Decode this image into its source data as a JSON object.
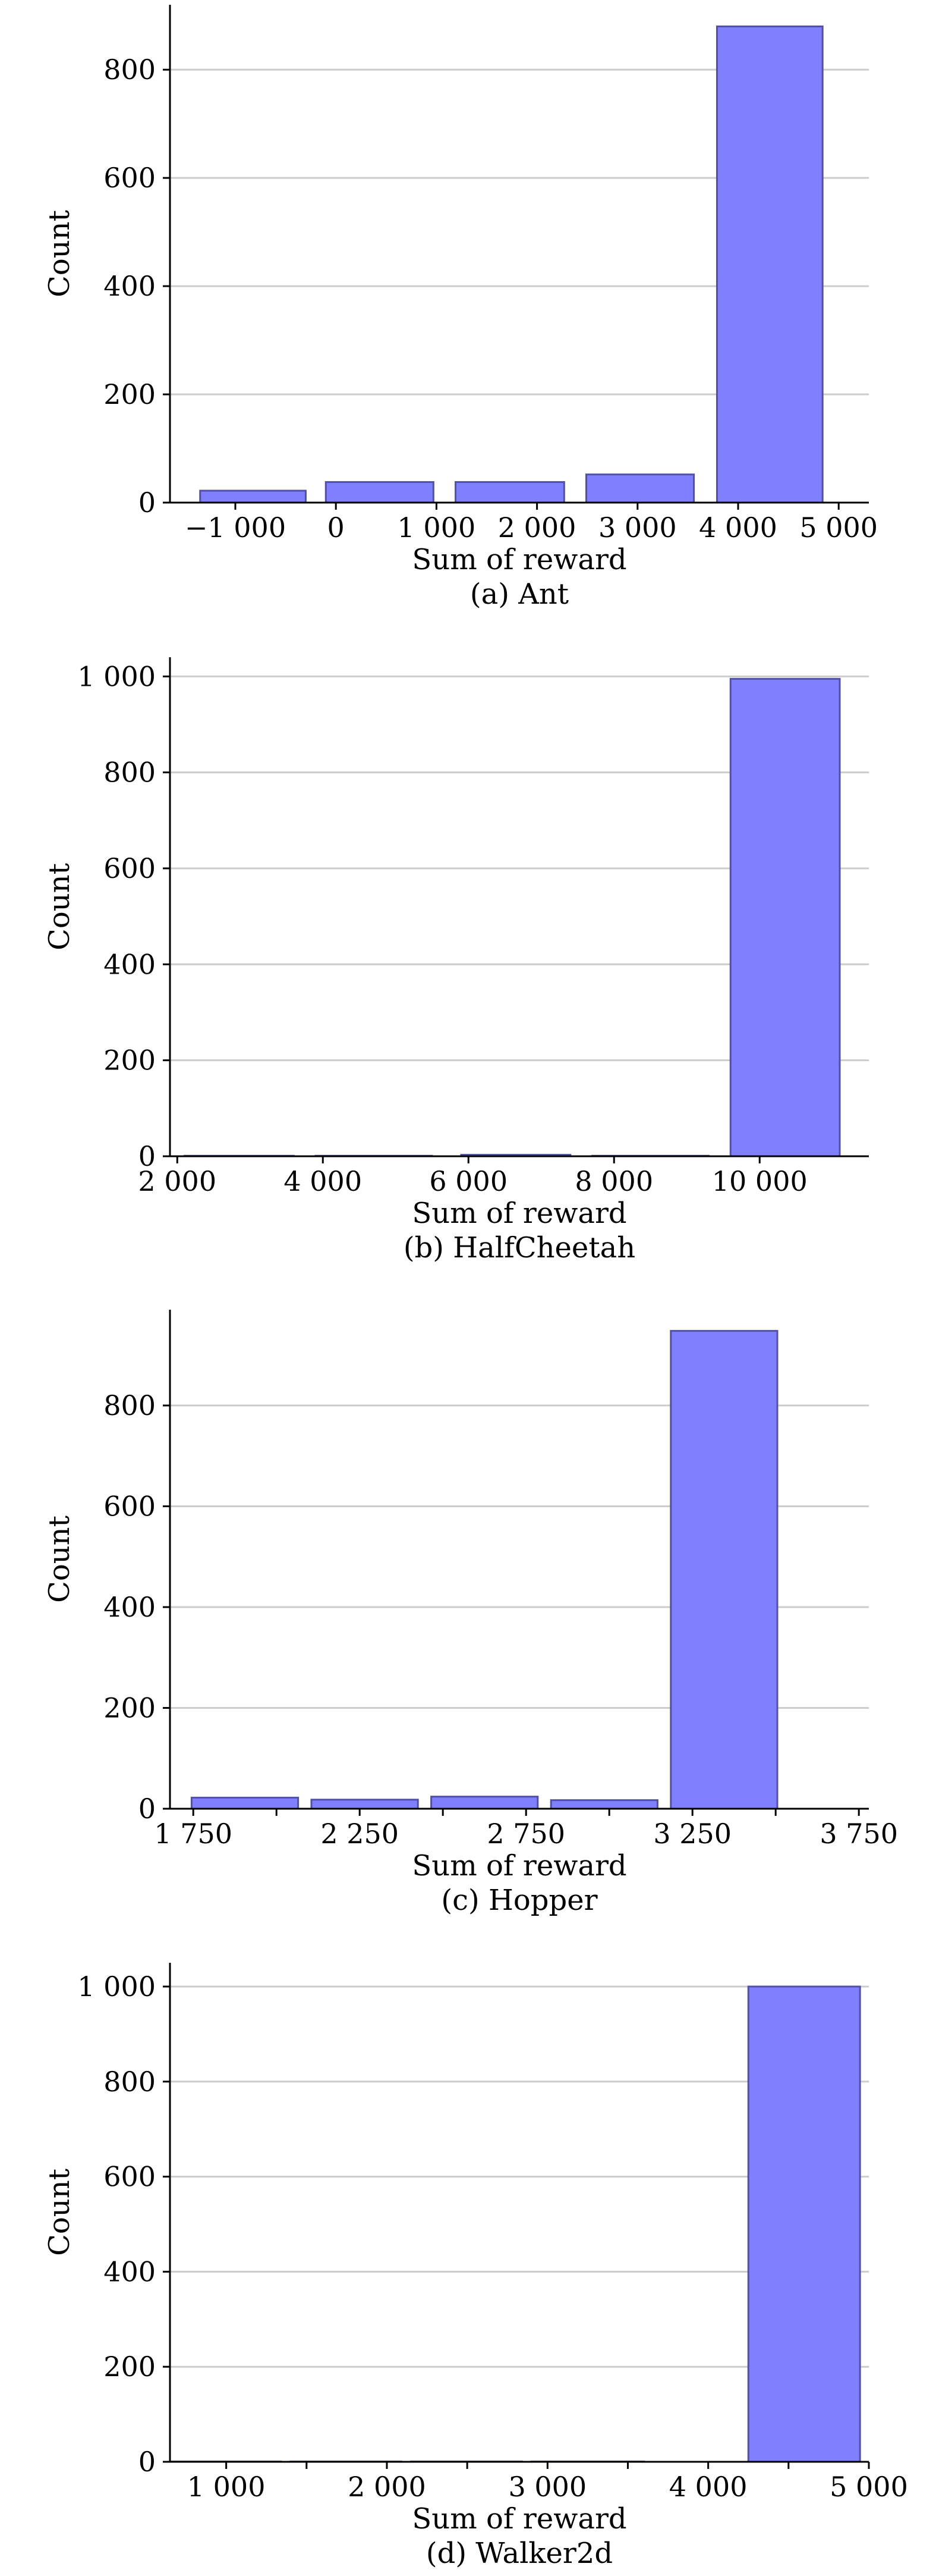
{
  "colors": {
    "bar_fill": "#8080ff",
    "bar_stroke": "#5050a8",
    "grid": "#cccccc",
    "axis": "#000000"
  },
  "chart_data": [
    {
      "type": "bar",
      "caption": "(a) Ant",
      "xlabel": "Sum of reward",
      "ylabel": "Count",
      "xlim": [
        -1650,
        5300
      ],
      "ylim": [
        0,
        920
      ],
      "xticks": [
        -1000,
        0,
        1000,
        2000,
        3000,
        4000,
        5000
      ],
      "xtick_labels": [
        "−1 000",
        "0",
        "1 000",
        "2 000",
        "3 000",
        "4 000",
        "5 000"
      ],
      "yticks": [
        0,
        200,
        400,
        600,
        800
      ],
      "ytick_labels": [
        "0",
        "200",
        "400",
        "600",
        "800"
      ],
      "grid": true,
      "bars": [
        {
          "x0": -1350,
          "x1": -300,
          "value": 22
        },
        {
          "x0": -100,
          "x1": 970,
          "value": 38
        },
        {
          "x0": 1190,
          "x1": 2270,
          "value": 38
        },
        {
          "x0": 2490,
          "x1": 3560,
          "value": 52
        },
        {
          "x0": 3790,
          "x1": 4840,
          "value": 880
        }
      ]
    },
    {
      "type": "bar",
      "caption": "(b) HalfCheetah",
      "xlabel": "Sum of reward",
      "ylabel": "Count",
      "xlim": [
        1900,
        11500
      ],
      "ylim": [
        0,
        1040
      ],
      "xticks": [
        2000,
        4000,
        6000,
        8000,
        10000
      ],
      "xtick_labels": [
        "2 000",
        "4 000",
        "6 000",
        "8 000",
        "10 000"
      ],
      "yticks": [
        0,
        200,
        400,
        600,
        800,
        1000
      ],
      "ytick_labels": [
        "0",
        "200",
        "400",
        "600",
        "800",
        "1 000"
      ],
      "grid": true,
      "bars": [
        {
          "x0": 2100,
          "x1": 3600,
          "value": 1
        },
        {
          "x0": 3900,
          "x1": 5500,
          "value": 1
        },
        {
          "x0": 5900,
          "x1": 7400,
          "value": 3
        },
        {
          "x0": 7700,
          "x1": 9300,
          "value": 1
        },
        {
          "x0": 9600,
          "x1": 11100,
          "value": 995
        }
      ]
    },
    {
      "type": "bar",
      "caption": "(c) Hopper",
      "xlabel": "Sum of reward",
      "ylabel": "Count",
      "xlim": [
        1680,
        3780
      ],
      "ylim": [
        0,
        990
      ],
      "xticks": [
        1750,
        2000,
        2250,
        2500,
        2750,
        3000,
        3250,
        3500,
        3750
      ],
      "xtick_labels": [
        "1 750",
        "",
        "2 250",
        "",
        "2 750",
        "",
        "3 250",
        "",
        "3 750"
      ],
      "yticks": [
        0,
        200,
        400,
        600,
        800
      ],
      "ytick_labels": [
        "0",
        "200",
        "400",
        "600",
        "800"
      ],
      "grid": true,
      "bars": [
        {
          "x0": 1745,
          "x1": 2065,
          "value": 22
        },
        {
          "x0": 2105,
          "x1": 2425,
          "value": 18
        },
        {
          "x0": 2465,
          "x1": 2785,
          "value": 24
        },
        {
          "x0": 2825,
          "x1": 3145,
          "value": 17
        },
        {
          "x0": 3185,
          "x1": 3505,
          "value": 948
        }
      ]
    },
    {
      "type": "bar",
      "caption": "(d) Walker2d",
      "xlabel": "Sum of reward",
      "ylabel": "Count",
      "xlim": [
        650,
        5000
      ],
      "ylim": [
        0,
        1050
      ],
      "xticks": [
        1000,
        1500,
        2000,
        2500,
        3000,
        3500,
        4000,
        4500,
        5000
      ],
      "xtick_labels": [
        "1 000",
        "",
        "2 000",
        "",
        "3 000",
        "",
        "4 000",
        "",
        "5 000"
      ],
      "yticks": [
        0,
        200,
        400,
        600,
        800,
        1000
      ],
      "ytick_labels": [
        "0",
        "200",
        "400",
        "600",
        "800",
        "1 000"
      ],
      "grid": true,
      "bars": [
        {
          "x0": 650,
          "x1": 1340,
          "value": 0
        },
        {
          "x0": 1400,
          "x1": 2090,
          "value": 0
        },
        {
          "x0": 2150,
          "x1": 2840,
          "value": 0
        },
        {
          "x0": 2900,
          "x1": 3600,
          "value": 0
        },
        {
          "x0": 4250,
          "x1": 4945,
          "value": 1000
        }
      ]
    }
  ]
}
